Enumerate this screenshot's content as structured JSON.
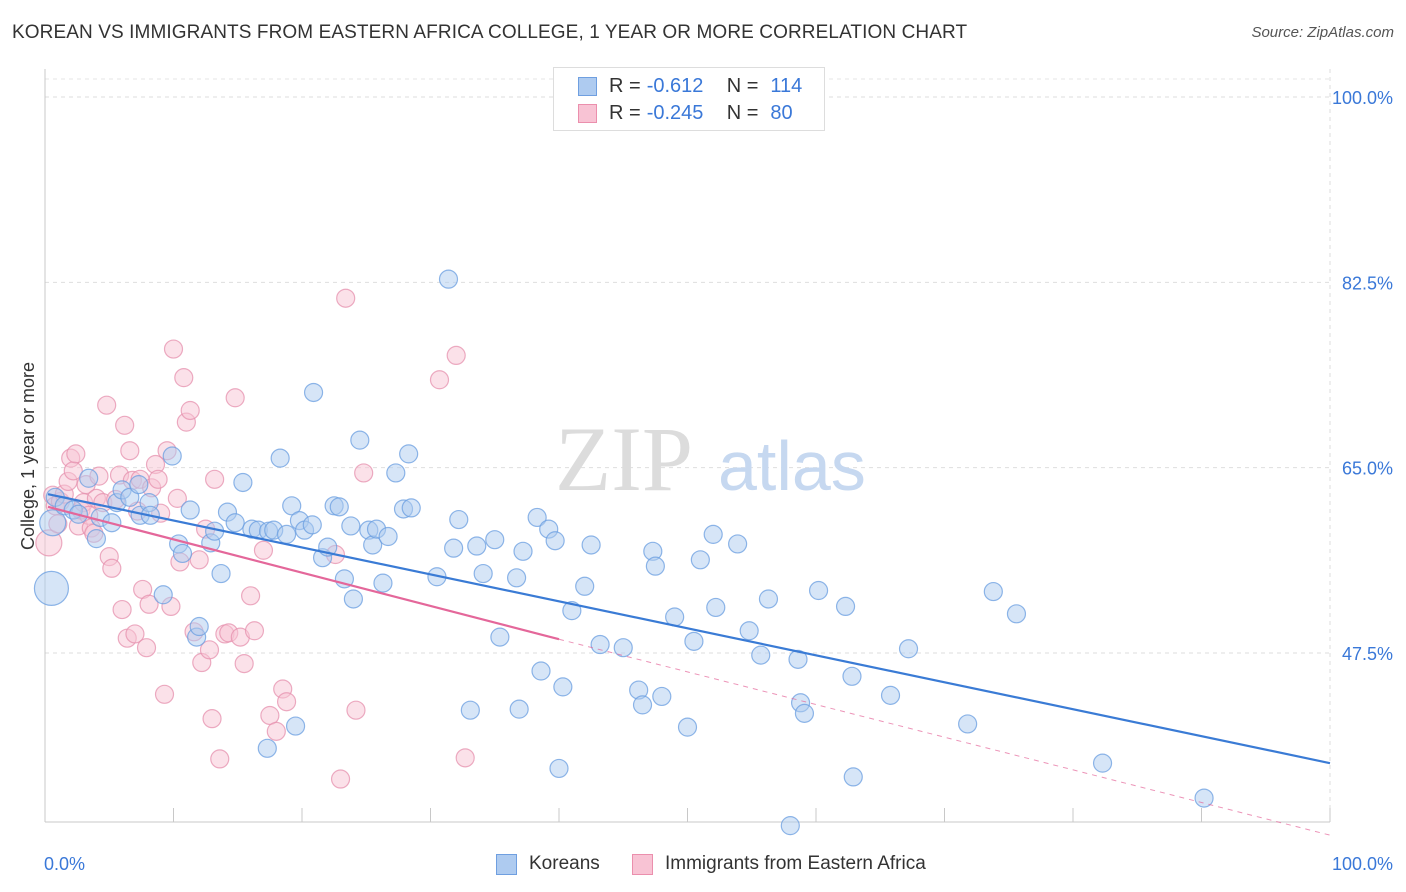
{
  "title": "KOREAN VS IMMIGRANTS FROM EASTERN AFRICA COLLEGE, 1 YEAR OR MORE CORRELATION CHART",
  "source": "Source: ZipAtlas.com",
  "legend": {
    "rows": [
      {
        "r_label": "R =",
        "r_value": "-0.612",
        "n_label": "N =",
        "n_value": "114",
        "color": "#aecbf0",
        "border": "#6f9fe0"
      },
      {
        "r_label": "R =",
        "r_value": "-0.245",
        "n_label": "N =",
        "n_value": "80",
        "color": "#f8c3d4",
        "border": "#eb8fad"
      }
    ]
  },
  "bottom_legend": [
    {
      "label": "Koreans",
      "color": "#aecbf0",
      "border": "#6f9fe0"
    },
    {
      "label": "Immigrants from Eastern Africa",
      "color": "#f8c3d4",
      "border": "#eb8fad"
    }
  ],
  "watermark": {
    "zip": "ZIP",
    "atlas": "atlas"
  },
  "chart_data": {
    "type": "scatter",
    "xlabel": "",
    "ylabel": "College, 1 year or more",
    "xlim": [
      0,
      100
    ],
    "ylim": [
      30,
      103
    ],
    "x_tick_labels": [
      "0.0%",
      "100.0%"
    ],
    "y_ticks": [
      47.5,
      65.0,
      82.5,
      100.0
    ],
    "y_tick_labels": [
      "47.5%",
      "65.0%",
      "82.5%",
      "100.0%"
    ],
    "grid": true,
    "colors": {
      "blue_fill": "#aecbf0",
      "blue_line": "#3a7bd5",
      "pink_fill": "#f8c3d4",
      "pink_line": "#e4679a",
      "tick_label": "#3a78d8"
    },
    "series": [
      {
        "name": "Koreans",
        "trendline": {
          "x": [
            0,
            100
          ],
          "y": [
            62.5,
            37.1
          ]
        },
        "points": [
          [
            0.5,
            53.6,
            "L"
          ],
          [
            0.6,
            59.8,
            "M"
          ],
          [
            0.8,
            62.2
          ],
          [
            1.5,
            61.4
          ],
          [
            2.2,
            61.0
          ],
          [
            2.6,
            60.6
          ],
          [
            3.4,
            64.0
          ],
          [
            4.0,
            58.3
          ],
          [
            4.3,
            60.3
          ],
          [
            5.2,
            59.8
          ],
          [
            5.6,
            61.7
          ],
          [
            6.0,
            62.9
          ],
          [
            6.6,
            62.2
          ],
          [
            7.3,
            63.4
          ],
          [
            7.4,
            60.5
          ],
          [
            8.1,
            61.7
          ],
          [
            8.2,
            60.5
          ],
          [
            9.2,
            53.0
          ],
          [
            9.9,
            66.1
          ],
          [
            10.4,
            57.8
          ],
          [
            10.7,
            56.9
          ],
          [
            11.3,
            61.0
          ],
          [
            11.8,
            49.0
          ],
          [
            12.0,
            50.0
          ],
          [
            12.9,
            57.9
          ],
          [
            13.2,
            59.0
          ],
          [
            13.7,
            55.0
          ],
          [
            14.2,
            60.8
          ],
          [
            14.8,
            59.8
          ],
          [
            15.4,
            63.6
          ],
          [
            16.1,
            59.2
          ],
          [
            16.6,
            59.1
          ],
          [
            17.3,
            38.5
          ],
          [
            17.4,
            59.0
          ],
          [
            17.8,
            59.1
          ],
          [
            18.3,
            65.9
          ],
          [
            18.8,
            58.7
          ],
          [
            19.2,
            61.4
          ],
          [
            19.5,
            40.6
          ],
          [
            19.8,
            60.0
          ],
          [
            20.2,
            59.1
          ],
          [
            20.8,
            59.6
          ],
          [
            20.9,
            72.1
          ],
          [
            21.6,
            56.5
          ],
          [
            22.0,
            57.5
          ],
          [
            22.5,
            61.4
          ],
          [
            22.9,
            61.3
          ],
          [
            23.3,
            54.5
          ],
          [
            23.8,
            59.5
          ],
          [
            24.0,
            52.6
          ],
          [
            24.5,
            67.6
          ],
          [
            25.2,
            59.1
          ],
          [
            25.5,
            57.7
          ],
          [
            25.8,
            59.2
          ],
          [
            26.3,
            54.1
          ],
          [
            26.7,
            58.5
          ],
          [
            27.3,
            64.5
          ],
          [
            27.9,
            61.1
          ],
          [
            28.3,
            66.3
          ],
          [
            28.5,
            61.2
          ],
          [
            30.5,
            54.7
          ],
          [
            31.4,
            82.8
          ],
          [
            31.8,
            57.4
          ],
          [
            32.2,
            60.1
          ],
          [
            33.1,
            42.1
          ],
          [
            33.6,
            57.6
          ],
          [
            34.1,
            55.0
          ],
          [
            35.0,
            58.2
          ],
          [
            35.4,
            49.0
          ],
          [
            36.7,
            54.6
          ],
          [
            36.9,
            42.2
          ],
          [
            37.2,
            57.1
          ],
          [
            38.3,
            60.3
          ],
          [
            38.6,
            45.8
          ],
          [
            39.2,
            59.2
          ],
          [
            39.7,
            58.1
          ],
          [
            40.0,
            36.6
          ],
          [
            40.3,
            44.3
          ],
          [
            41.0,
            51.5
          ],
          [
            42.0,
            53.8
          ],
          [
            42.5,
            57.7
          ],
          [
            43.2,
            48.3
          ],
          [
            45.0,
            48.0
          ],
          [
            46.2,
            44.0
          ],
          [
            46.5,
            42.6
          ],
          [
            47.3,
            57.1
          ],
          [
            47.5,
            55.7
          ],
          [
            48.0,
            43.4
          ],
          [
            49.0,
            50.9
          ],
          [
            50.0,
            40.5
          ],
          [
            50.5,
            48.6
          ],
          [
            51.0,
            56.3
          ],
          [
            52.0,
            58.7
          ],
          [
            52.2,
            51.8
          ],
          [
            53.9,
            57.8
          ],
          [
            54.8,
            49.6
          ],
          [
            55.7,
            47.3
          ],
          [
            56.3,
            52.6
          ],
          [
            58.0,
            31.2
          ],
          [
            58.6,
            46.9
          ],
          [
            58.8,
            42.8
          ],
          [
            59.1,
            41.8
          ],
          [
            60.2,
            53.4
          ],
          [
            62.3,
            51.9
          ],
          [
            62.9,
            35.8
          ],
          [
            62.8,
            45.3
          ],
          [
            65.8,
            43.5
          ],
          [
            67.2,
            47.9
          ],
          [
            71.8,
            40.8
          ],
          [
            73.8,
            53.3
          ],
          [
            75.6,
            51.2
          ],
          [
            82.3,
            37.1
          ],
          [
            90.2,
            33.8
          ]
        ]
      },
      {
        "name": "Immigrants from Eastern Africa",
        "trendline": {
          "x": [
            0,
            40
          ],
          "y": [
            61.3,
            48.8
          ]
        },
        "trendline_dashed": {
          "x": [
            40,
            100
          ],
          "y": [
            48.8,
            30.3
          ]
        },
        "points": [
          [
            0.3,
            57.9,
            "M"
          ],
          [
            0.6,
            62.4
          ],
          [
            0.8,
            61.4
          ],
          [
            1.0,
            59.7
          ],
          [
            1.2,
            61.8
          ],
          [
            1.5,
            62.5
          ],
          [
            1.8,
            63.7
          ],
          [
            2.0,
            65.9
          ],
          [
            2.2,
            64.7
          ],
          [
            2.4,
            66.3
          ],
          [
            2.6,
            59.5
          ],
          [
            2.8,
            61.0
          ],
          [
            3.0,
            61.7
          ],
          [
            3.2,
            63.4
          ],
          [
            3.4,
            60.5
          ],
          [
            3.6,
            59.3
          ],
          [
            3.8,
            58.8
          ],
          [
            4.0,
            62.1
          ],
          [
            4.2,
            64.2
          ],
          [
            4.5,
            61.7
          ],
          [
            4.8,
            70.9
          ],
          [
            5.0,
            56.6
          ],
          [
            5.2,
            55.5
          ],
          [
            5.5,
            62.0
          ],
          [
            5.8,
            64.3
          ],
          [
            6.0,
            51.6
          ],
          [
            6.2,
            69.0
          ],
          [
            6.4,
            48.9
          ],
          [
            6.6,
            66.6
          ],
          [
            6.8,
            63.8
          ],
          [
            7.0,
            49.3
          ],
          [
            7.2,
            60.9
          ],
          [
            7.4,
            63.9
          ],
          [
            7.6,
            53.5
          ],
          [
            7.9,
            48.0
          ],
          [
            8.1,
            52.1
          ],
          [
            8.3,
            63.1
          ],
          [
            8.6,
            65.3
          ],
          [
            8.8,
            63.9
          ],
          [
            9.0,
            60.7
          ],
          [
            9.3,
            43.6
          ],
          [
            9.5,
            66.6
          ],
          [
            9.8,
            51.9
          ],
          [
            10.0,
            76.2
          ],
          [
            10.3,
            62.1
          ],
          [
            10.5,
            56.1
          ],
          [
            10.8,
            73.5
          ],
          [
            11.0,
            69.3
          ],
          [
            11.3,
            70.4
          ],
          [
            11.6,
            49.5
          ],
          [
            12.0,
            56.3
          ],
          [
            12.2,
            46.6
          ],
          [
            12.5,
            59.2
          ],
          [
            12.8,
            47.8
          ],
          [
            13.0,
            41.3
          ],
          [
            13.2,
            63.9
          ],
          [
            13.6,
            37.5
          ],
          [
            14.0,
            49.3
          ],
          [
            14.3,
            49.4
          ],
          [
            14.8,
            71.6
          ],
          [
            15.2,
            49.0
          ],
          [
            15.5,
            46.5
          ],
          [
            16.0,
            52.9
          ],
          [
            16.3,
            49.6
          ],
          [
            17.0,
            57.2
          ],
          [
            17.5,
            41.6
          ],
          [
            18.0,
            40.1
          ],
          [
            18.5,
            44.1
          ],
          [
            18.8,
            42.9
          ],
          [
            22.6,
            56.8
          ],
          [
            23.0,
            35.6
          ],
          [
            23.4,
            81.0
          ],
          [
            24.2,
            42.1
          ],
          [
            24.8,
            64.5
          ],
          [
            30.7,
            73.3
          ],
          [
            32.0,
            75.6
          ],
          [
            32.7,
            37.6
          ]
        ]
      }
    ]
  }
}
